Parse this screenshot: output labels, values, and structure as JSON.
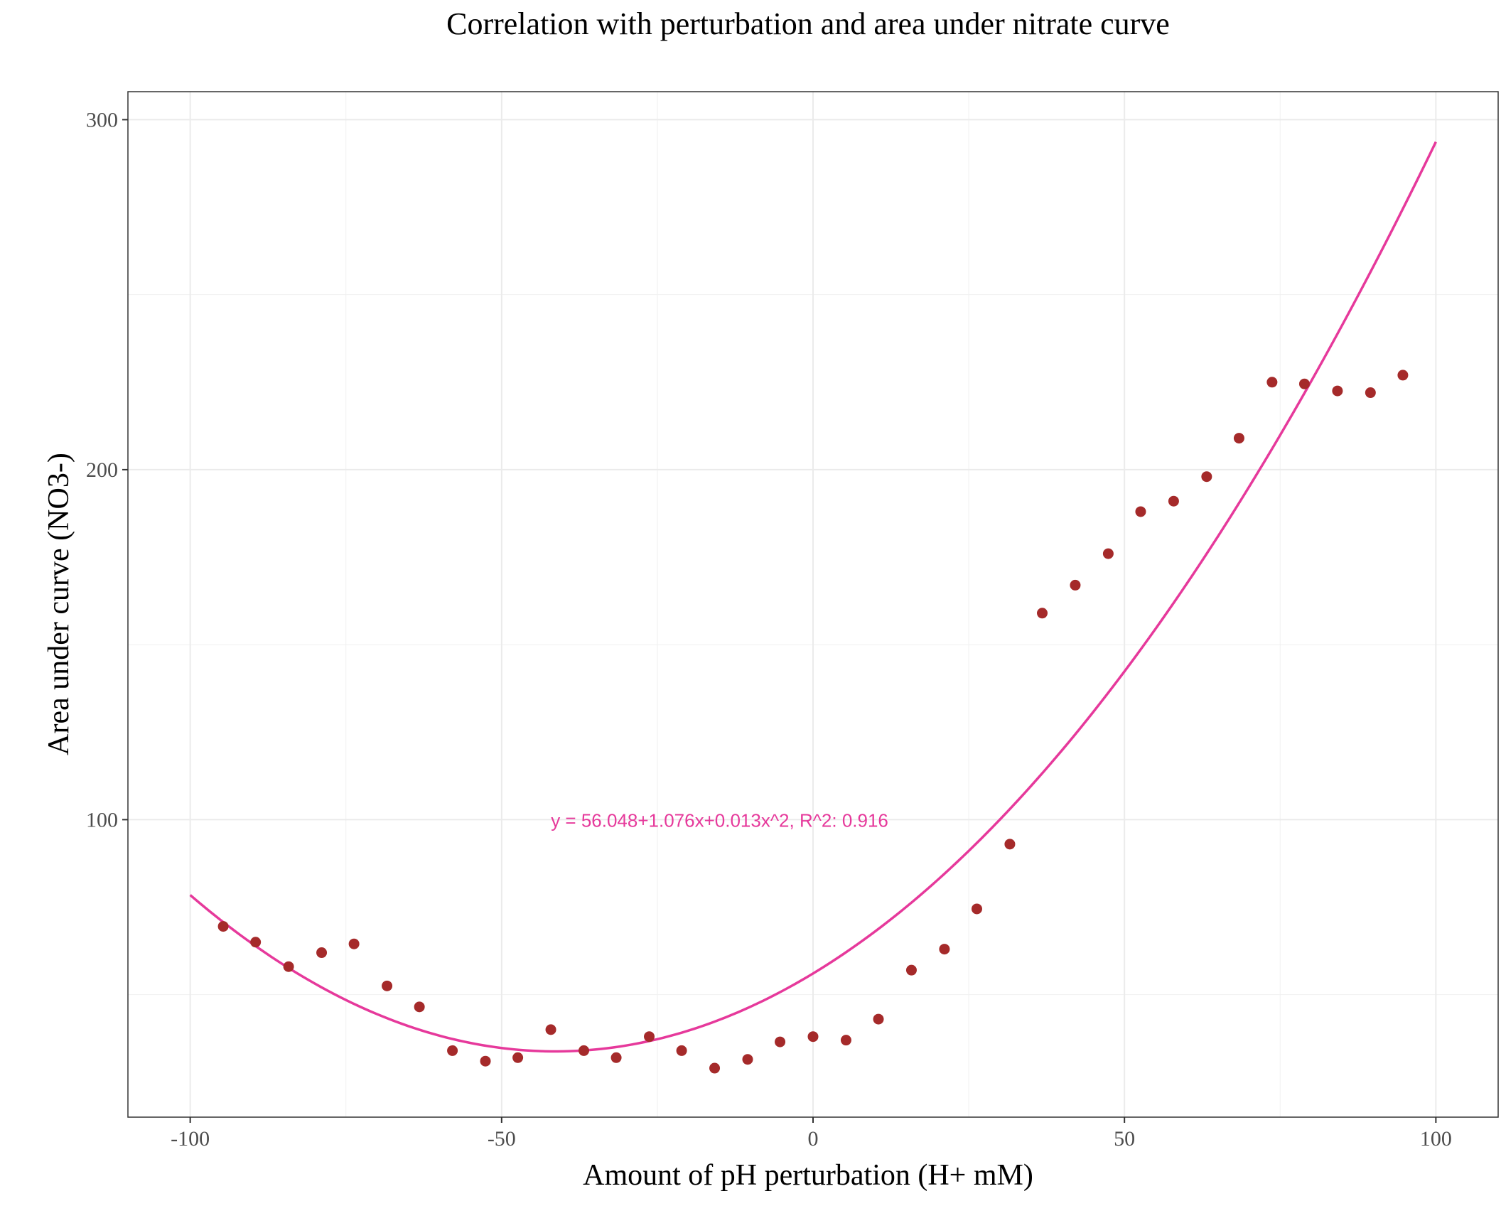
{
  "chart_data": {
    "type": "scatter",
    "title": "Correlation with perturbation and area under nitrate curve",
    "xlabel": "Amount of pH perturbation (H+ mM)",
    "ylabel": "Area under curve (NO3-)",
    "xlim": [
      -110,
      110
    ],
    "ylim": [
      15,
      308
    ],
    "x_ticks": [
      -100,
      -50,
      0,
      50,
      100
    ],
    "x_tick_labels": [
      "-100",
      "-50",
      "0",
      "50",
      "100"
    ],
    "y_ticks": [
      100,
      200,
      300
    ],
    "y_tick_labels": [
      "100",
      "200",
      "300"
    ],
    "grid": true,
    "legend": "none",
    "points_color": "#a52a2a",
    "fit_color": "#e6399b",
    "series": [
      {
        "x": [
          -94.7,
          -89.5,
          -84.2,
          -78.9,
          -73.7,
          -68.4,
          -63.2,
          -57.9,
          -52.6,
          -47.4,
          -42.1,
          -36.8,
          -31.6,
          -26.3,
          -21.1,
          -15.8,
          -10.5,
          -5.3,
          0,
          5.3,
          10.5,
          15.8,
          21.1,
          26.3,
          31.6,
          36.8,
          42.1,
          47.4,
          52.6,
          57.9,
          63.2,
          68.4,
          73.7,
          78.9,
          84.2,
          89.5,
          94.7
        ],
        "y": [
          69.5,
          65,
          58,
          62,
          64.5,
          52.5,
          46.5,
          34,
          31,
          32,
          40,
          34,
          32,
          38,
          34,
          29,
          31.5,
          36.5,
          38,
          37,
          43,
          57,
          63,
          74.5,
          93,
          159,
          167,
          176,
          188,
          191,
          198,
          209,
          225,
          224.5,
          222.5,
          222,
          227
        ]
      }
    ],
    "fit": {
      "equation_label": "y = 56.048+1.076x+0.013x^2,  R^2: 0.916",
      "intercept": 56.048,
      "linear": 1.076,
      "quadratic": 0.013,
      "x_range": [
        -100,
        100
      ],
      "label_at": [
        -15,
        100
      ]
    }
  }
}
